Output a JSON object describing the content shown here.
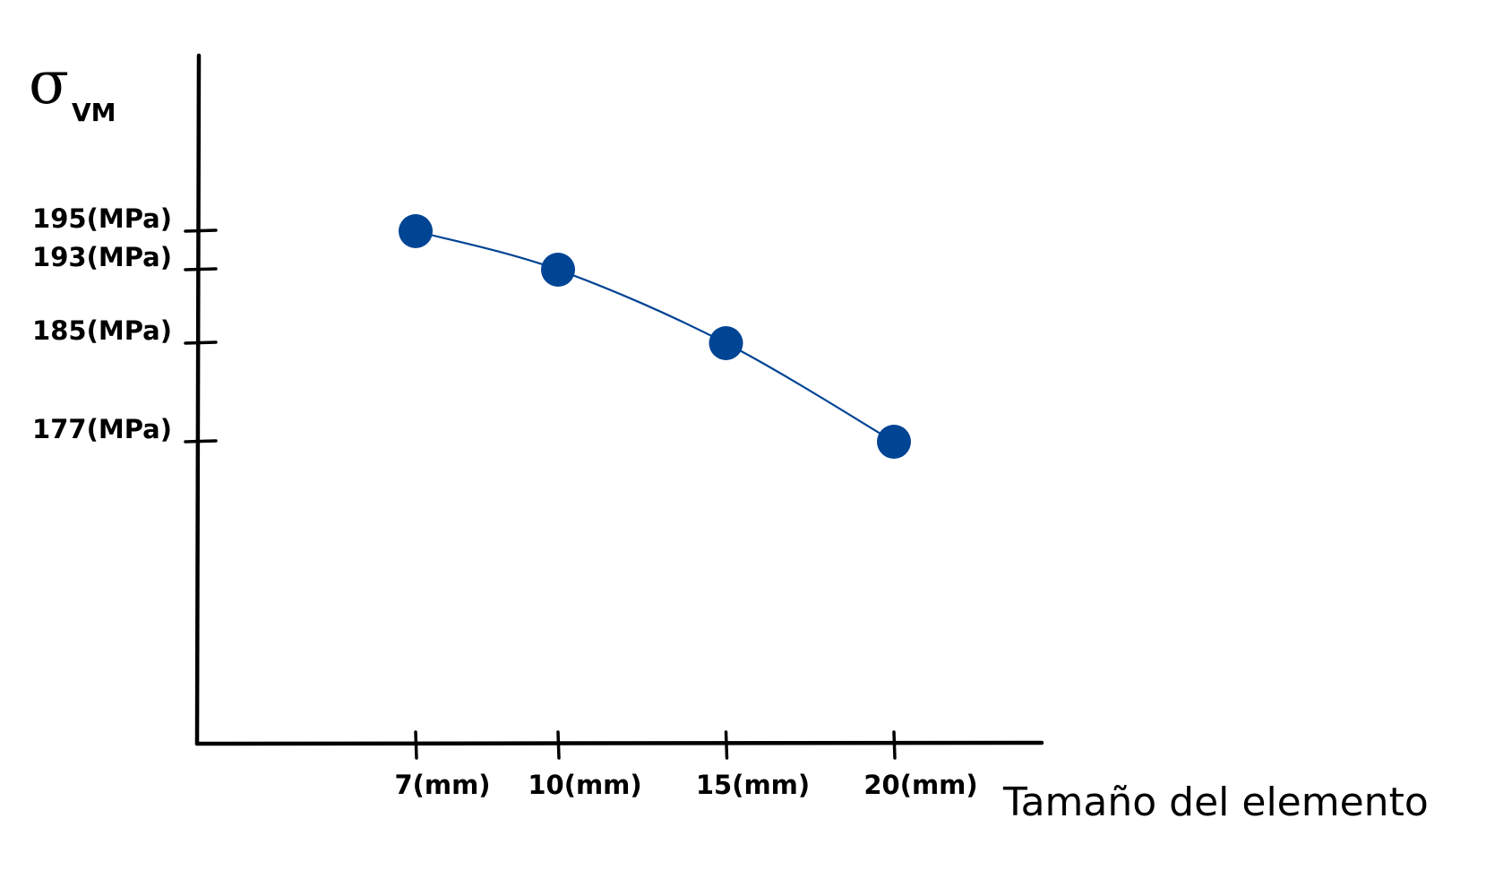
{
  "chart_data": {
    "type": "line",
    "title": "",
    "ylabel": "σ",
    "ylabel_subscript": "VM",
    "xlabel": "Tamaño del elemento",
    "x": [
      7,
      10,
      15,
      20
    ],
    "x_tick_labels": [
      "7(mm)",
      "10(mm)",
      "15(mm)",
      "20(mm)"
    ],
    "y_tick_values": [
      195,
      193,
      185,
      177
    ],
    "y_tick_labels": [
      "195(MPa)",
      "193(MPa)",
      "185(MPa)",
      "177(MPa)"
    ],
    "series": [
      {
        "values": [
          195,
          193,
          185,
          177
        ],
        "color": "#004494"
      }
    ],
    "grid": false,
    "legend": "none"
  }
}
